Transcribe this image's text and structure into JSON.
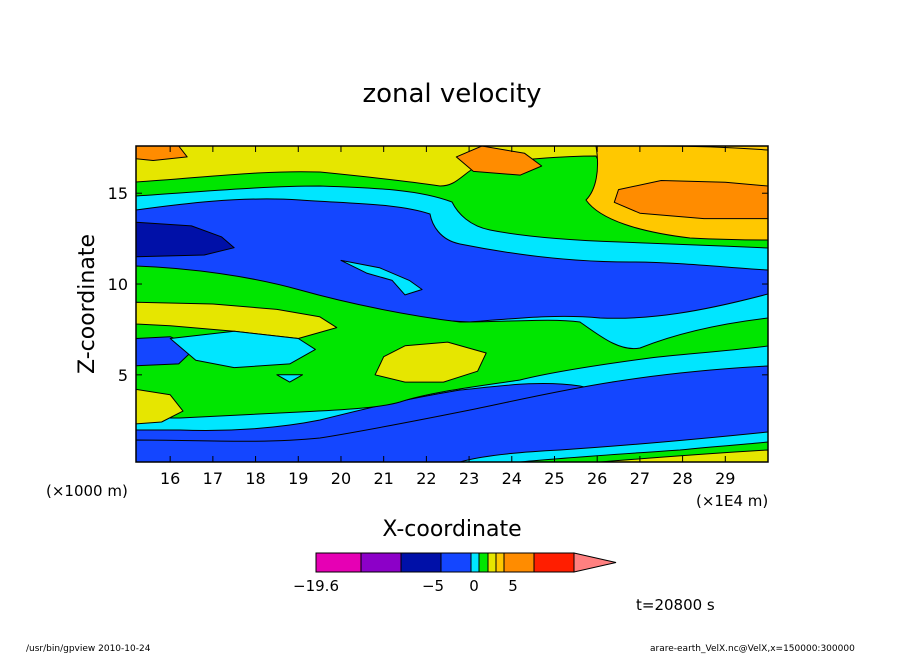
{
  "chart_data": {
    "type": "heatmap",
    "title": "zonal velocity",
    "xlabel": "X-coordinate",
    "ylabel": "Z-coordinate",
    "x_unit_label": "(×1E4 m)",
    "y_unit_label": "(×1000 m)",
    "xlim": [
      15.2,
      30.0
    ],
    "ylim": [
      0.2,
      17.6
    ],
    "x_ticks": [
      16,
      17,
      18,
      19,
      20,
      21,
      22,
      23,
      24,
      25,
      26,
      27,
      28,
      29
    ],
    "y_ticks": [
      5,
      10,
      15
    ],
    "colorbar": {
      "colors": [
        "#e600b4",
        "#8c00c8",
        "#0010a8",
        "#1446ff",
        "#00e6ff",
        "#00e600",
        "#e6e600",
        "#ffc800",
        "#ff8c00",
        "#ff1e00",
        "#ff8080"
      ],
      "labels": [
        {
          "text": "−19.6",
          "at": -19.6
        },
        {
          "text": "−5",
          "at": -5
        },
        {
          "text": "0",
          "at": 0
        },
        {
          "text": "5",
          "at": 5
        }
      ]
    },
    "time_label": "t=20800 s",
    "regions": [
      {
        "name": "deep-blue-core",
        "level": -9,
        "pts": [
          [
            15.2,
            13.4
          ],
          [
            16.5,
            13.2
          ],
          [
            17.2,
            12.6
          ],
          [
            17.5,
            12.0
          ],
          [
            16.8,
            11.6
          ],
          [
            15.2,
            11.5
          ]
        ]
      },
      {
        "name": "cyan-lens",
        "level": -2,
        "pts": [
          [
            20.0,
            11.3
          ],
          [
            20.6,
            10.6
          ],
          [
            21.2,
            10.2
          ],
          [
            21.5,
            9.4
          ],
          [
            21.9,
            9.7
          ],
          [
            21.6,
            10.2
          ],
          [
            20.9,
            10.9
          ]
        ]
      },
      {
        "name": "blue-lens-left",
        "level": -6,
        "pts": [
          [
            15.2,
            7.0
          ],
          [
            16.0,
            7.1
          ],
          [
            16.6,
            6.5
          ],
          [
            16.2,
            5.6
          ],
          [
            15.2,
            5.5
          ]
        ]
      },
      {
        "name": "yellow-lens-left",
        "level": 2,
        "pts": [
          [
            15.2,
            9.0
          ],
          [
            17.0,
            8.9
          ],
          [
            18.5,
            8.6
          ],
          [
            19.5,
            8.2
          ],
          [
            19.9,
            7.6
          ],
          [
            19.0,
            7.0
          ],
          [
            17.5,
            7.4
          ],
          [
            16.0,
            7.7
          ],
          [
            15.2,
            7.8
          ]
        ]
      },
      {
        "name": "cyan-lens-left",
        "level": -2,
        "pts": [
          [
            16.0,
            7.0
          ],
          [
            17.5,
            7.4
          ],
          [
            19.0,
            7.0
          ],
          [
            19.4,
            6.4
          ],
          [
            18.8,
            5.6
          ],
          [
            17.5,
            5.4
          ],
          [
            16.6,
            5.8
          ]
        ]
      },
      {
        "name": "yellow-lens-mid",
        "level": 2,
        "pts": [
          [
            21.0,
            6.0
          ],
          [
            21.5,
            6.6
          ],
          [
            22.5,
            6.8
          ],
          [
            23.4,
            6.2
          ],
          [
            23.2,
            5.2
          ],
          [
            22.4,
            4.6
          ],
          [
            21.5,
            4.6
          ],
          [
            20.8,
            5.0
          ]
        ]
      },
      {
        "name": "yellow-lens-bottom",
        "level": 2,
        "pts": [
          [
            15.2,
            4.2
          ],
          [
            16.0,
            3.9
          ],
          [
            16.3,
            3.0
          ],
          [
            15.8,
            2.4
          ],
          [
            15.2,
            2.3
          ]
        ]
      },
      {
        "name": "cyan-spot",
        "level": -2,
        "pts": [
          [
            18.5,
            5.0
          ],
          [
            19.1,
            5.0
          ],
          [
            18.8,
            4.6
          ]
        ]
      },
      {
        "name": "orange-blob-top",
        "level": 5,
        "pts": [
          [
            23.3,
            17.6
          ],
          [
            24.3,
            17.2
          ],
          [
            24.7,
            16.5
          ],
          [
            24.2,
            16.0
          ],
          [
            23.1,
            16.2
          ],
          [
            22.7,
            17.0
          ]
        ]
      },
      {
        "name": "orange-blob-right",
        "level": 5,
        "pts": [
          [
            26.5,
            15.2
          ],
          [
            27.5,
            15.7
          ],
          [
            29.0,
            15.6
          ],
          [
            30.0,
            15.4
          ],
          [
            30.0,
            13.6
          ],
          [
            28.5,
            13.6
          ],
          [
            27.0,
            13.9
          ],
          [
            26.4,
            14.5
          ]
        ]
      },
      {
        "name": "orange-blob-topleft",
        "level": 5,
        "pts": [
          [
            15.2,
            17.6
          ],
          [
            16.2,
            17.6
          ],
          [
            16.4,
            17.0
          ],
          [
            15.6,
            16.8
          ],
          [
            15.2,
            16.9
          ]
        ]
      }
    ]
  },
  "footer": {
    "left": "/usr/bin/gpview   2010-10-24",
    "right": "arare-earth_VelX.nc@VelX,x=150000:300000"
  }
}
